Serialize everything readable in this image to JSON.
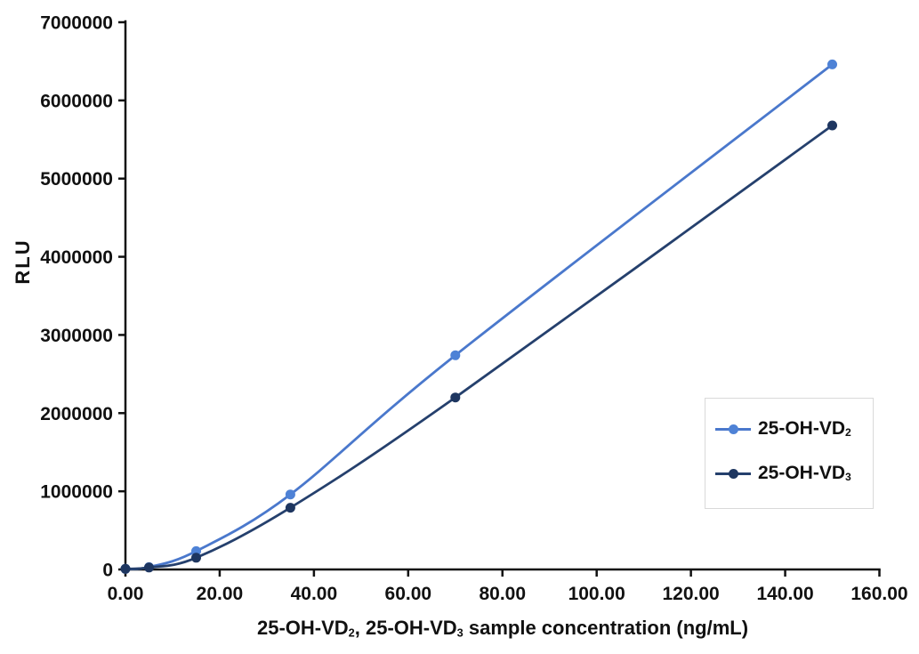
{
  "chart_data": {
    "type": "line",
    "line_style": "smooth",
    "marker": "circle",
    "title": "",
    "xlabel": "25-OH-VD₂、 25-OH-VD₃ sample concentration (ng/mL)",
    "xlabel_parts": [
      "25-OH-VD",
      "2",
      ", 25-OH-VD",
      "3",
      " sample concentration (ng/mL)"
    ],
    "ylabel": "RLU",
    "x": [
      0,
      5,
      15,
      35,
      70,
      150
    ],
    "series": [
      {
        "name": "25-OH-VD₂",
        "base": "25-OH-VD",
        "sub": "2",
        "color": "#4a78cc",
        "marker_color": "#4e82d6",
        "values": [
          8000,
          30000,
          235000,
          960000,
          2740000,
          6460000
        ]
      },
      {
        "name": "25-OH-VD₃",
        "base": "25-OH-VD",
        "sub": "3",
        "color": "#25406d",
        "marker_color": "#1e3660",
        "values": [
          8000,
          25000,
          150000,
          790000,
          2200000,
          5680000
        ]
      }
    ],
    "xlim": [
      0,
      160
    ],
    "ylim": [
      0,
      7000000
    ],
    "x_ticks": [
      "0.00",
      "20.00",
      "40.00",
      "60.00",
      "80.00",
      "100.00",
      "120.00",
      "140.00",
      "160.00"
    ],
    "y_ticks": [
      "0",
      "1000000",
      "2000000",
      "3000000",
      "4000000",
      "5000000",
      "6000000",
      "7000000"
    ],
    "grid": false,
    "axis_color": "#111111",
    "text_color": "#111111",
    "legend": {
      "position": "middle-right",
      "border_color": "#d9d9d9",
      "labels": [
        "25-OH-VD₂",
        "25-OH-VD₃"
      ]
    }
  }
}
